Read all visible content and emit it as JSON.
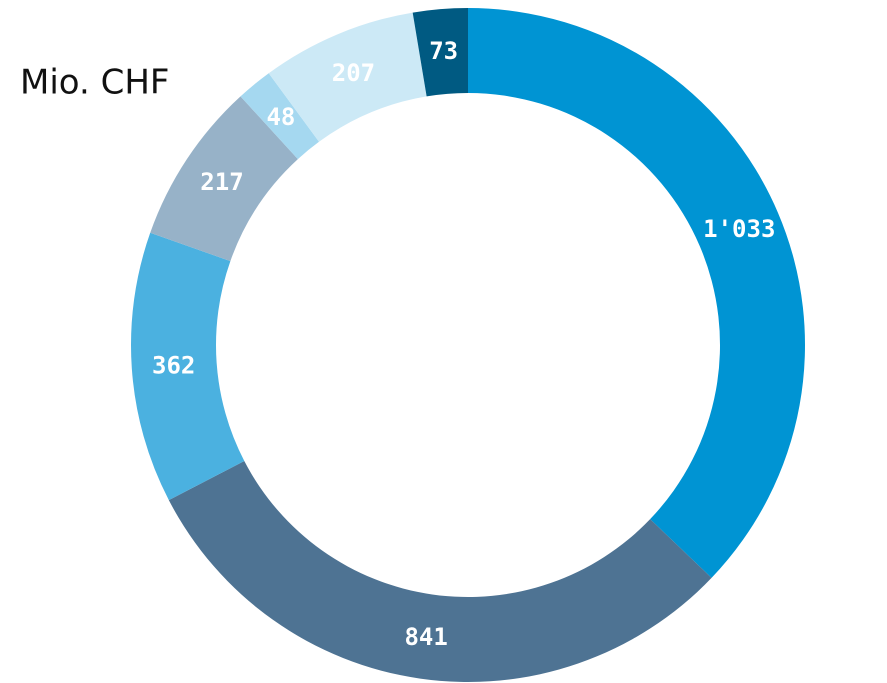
{
  "chart_data": {
    "type": "pie",
    "donut": true,
    "title": "Mio. CHF",
    "values": [
      1033,
      841,
      362,
      217,
      48,
      207,
      73
    ],
    "value_labels": [
      "1'033",
      "841",
      "362",
      "217",
      "48",
      "207",
      "73"
    ],
    "colors": [
      "#0094d3",
      "#4e7393",
      "#4bb1e0",
      "#97b2c8",
      "#a5d8f0",
      "#cce9f6",
      "#005a82"
    ]
  }
}
